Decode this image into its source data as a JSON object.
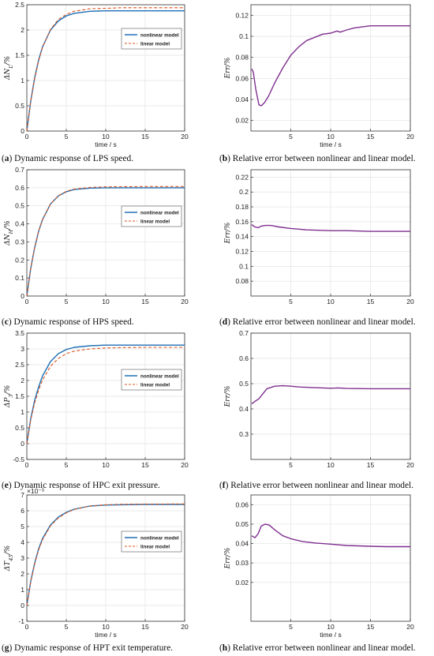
{
  "colors": {
    "nonlinear": "#1f6fb5",
    "linear": "#d9541e",
    "error": "#7e2f8e",
    "grid": "#e3e3e3",
    "axis": "#333333",
    "text": "#222222"
  },
  "captions": [
    {
      "letter": "a",
      "text": " Dynamic response of LPS speed."
    },
    {
      "letter": "b",
      "text": " Relative error between nonlinear and linear model."
    },
    {
      "letter": "c",
      "text": " Dynamic response of HPS speed."
    },
    {
      "letter": "d",
      "text": " Relative error between nonlinear and linear model."
    },
    {
      "letter": "e",
      "text": " Dynamic response of HPC exit pressure."
    },
    {
      "letter": "f",
      "text": " Relative error between nonlinear and linear model."
    },
    {
      "letter": "g",
      "text": " Dynamic response of HPT exit temperature."
    },
    {
      "letter": "h",
      "text": " Relative error between nonlinear and linear model."
    }
  ],
  "chart_data": [
    {
      "type": "line",
      "xlabel": "time / s",
      "ylabel": "ΔN_L/%",
      "xlim": [
        0,
        20
      ],
      "ylim": [
        0,
        2.5
      ],
      "xticks": [
        0,
        5,
        10,
        15,
        20
      ],
      "yticks": [
        0,
        0.5,
        1,
        1.5,
        2,
        2.5
      ],
      "grid": true,
      "legend": "top-right",
      "series": [
        {
          "name": "nonlinear model",
          "style": "solid",
          "x": [
            0,
            0.5,
            1,
            1.5,
            2,
            3,
            4,
            5,
            6,
            8,
            10,
            12,
            15,
            20
          ],
          "y": [
            0,
            0.6,
            1.06,
            1.41,
            1.67,
            2.0,
            2.18,
            2.28,
            2.33,
            2.37,
            2.38,
            2.38,
            2.38,
            2.38
          ]
        },
        {
          "name": "linear model",
          "style": "dashed",
          "x": [
            0,
            0.5,
            1,
            1.5,
            2,
            3,
            4,
            5,
            6,
            8,
            10,
            12,
            15,
            20
          ],
          "y": [
            0,
            0.59,
            1.04,
            1.39,
            1.66,
            2.01,
            2.21,
            2.31,
            2.37,
            2.42,
            2.43,
            2.44,
            2.44,
            2.44
          ]
        }
      ]
    },
    {
      "type": "line",
      "xlabel": "time / s",
      "ylabel": "Err/%",
      "xlim": [
        0,
        20
      ],
      "ylim": [
        0.01,
        0.13
      ],
      "xticks": [
        5,
        10,
        15,
        20
      ],
      "yticks": [
        0.02,
        0.04,
        0.06,
        0.08,
        0.1,
        0.12
      ],
      "grid": true,
      "series": [
        {
          "x": [
            0.1,
            0.3,
            0.6,
            1.0,
            1.3,
            1.7,
            2.2,
            3,
            4,
            5,
            6,
            7,
            8,
            9,
            10,
            10.8,
            11.2,
            12,
            13,
            15,
            17,
            20
          ],
          "y": [
            0.069,
            0.066,
            0.05,
            0.035,
            0.034,
            0.037,
            0.043,
            0.056,
            0.07,
            0.082,
            0.09,
            0.096,
            0.099,
            0.102,
            0.103,
            0.105,
            0.104,
            0.106,
            0.108,
            0.11,
            0.11,
            0.11
          ]
        }
      ]
    },
    {
      "type": "line",
      "xlabel": "",
      "ylabel": "ΔN_H/%",
      "xlim": [
        0,
        20
      ],
      "ylim": [
        0,
        0.7
      ],
      "xticks": [
        0,
        5,
        10,
        15,
        20
      ],
      "yticks": [
        0,
        0.1,
        0.2,
        0.3,
        0.4,
        0.5,
        0.6,
        0.7
      ],
      "grid": true,
      "legend": "right",
      "series": [
        {
          "name": "nonlinear model",
          "style": "solid",
          "x": [
            0,
            0.5,
            1,
            1.5,
            2,
            3,
            4,
            5,
            6,
            8,
            10,
            12,
            15,
            20
          ],
          "y": [
            0,
            0.155,
            0.27,
            0.36,
            0.425,
            0.51,
            0.555,
            0.578,
            0.59,
            0.598,
            0.6,
            0.6,
            0.6,
            0.6
          ]
        },
        {
          "name": "linear model",
          "style": "dashed",
          "x": [
            0,
            0.5,
            1,
            1.5,
            2,
            3,
            4,
            5,
            6,
            8,
            10,
            12,
            15,
            20
          ],
          "y": [
            0,
            0.155,
            0.27,
            0.36,
            0.425,
            0.51,
            0.556,
            0.58,
            0.593,
            0.602,
            0.605,
            0.606,
            0.607,
            0.607
          ]
        }
      ]
    },
    {
      "type": "line",
      "xlabel": "",
      "ylabel": "Err/%",
      "xlim": [
        0,
        20
      ],
      "ylim": [
        0.06,
        0.23
      ],
      "xticks": [
        5,
        10,
        15,
        20
      ],
      "yticks": [
        0.08,
        0.1,
        0.12,
        0.14,
        0.16,
        0.18,
        0.2,
        0.22
      ],
      "grid": true,
      "series": [
        {
          "x": [
            0.1,
            0.5,
            0.9,
            1.3,
            1.8,
            2.5,
            3.5,
            5,
            7,
            10,
            12,
            15,
            20
          ],
          "y": [
            0.156,
            0.153,
            0.152,
            0.154,
            0.155,
            0.155,
            0.153,
            0.151,
            0.149,
            0.148,
            0.148,
            0.147,
            0.147
          ]
        }
      ]
    },
    {
      "type": "line",
      "xlabel": "",
      "ylabel": "ΔP_3/%",
      "xlim": [
        0,
        20
      ],
      "ylim": [
        -0.5,
        3.5
      ],
      "xticks": [
        0,
        5,
        10,
        15,
        20
      ],
      "yticks": [
        -0.5,
        0,
        0.5,
        1,
        1.5,
        2,
        2.5,
        3,
        3.5
      ],
      "grid": true,
      "legend": "right",
      "series": [
        {
          "name": "nonlinear model",
          "style": "solid",
          "x": [
            0,
            0.5,
            1,
            1.5,
            2,
            3,
            4,
            5,
            6,
            8,
            10,
            12,
            15,
            20
          ],
          "y": [
            0,
            0.8,
            1.38,
            1.8,
            2.15,
            2.6,
            2.85,
            2.98,
            3.05,
            3.1,
            3.12,
            3.12,
            3.12,
            3.12
          ]
        },
        {
          "name": "linear model",
          "style": "dashed",
          "x": [
            0,
            0.5,
            1,
            1.5,
            2,
            3,
            4,
            5,
            6,
            8,
            10,
            12,
            15,
            20
          ],
          "y": [
            0,
            0.76,
            1.3,
            1.7,
            2.02,
            2.45,
            2.7,
            2.85,
            2.93,
            3.0,
            3.03,
            3.04,
            3.05,
            3.05
          ]
        }
      ]
    },
    {
      "type": "line",
      "xlabel": "",
      "ylabel": "Err/%",
      "xlim": [
        0,
        20
      ],
      "ylim": [
        0.2,
        0.7
      ],
      "xticks": [
        5,
        10,
        15,
        20
      ],
      "yticks": [
        0.3,
        0.4,
        0.5,
        0.6,
        0.7
      ],
      "grid": true,
      "series": [
        {
          "x": [
            0.1,
            0.5,
            1.0,
            1.5,
            2.0,
            3.0,
            4.0,
            5.0,
            6.0,
            8.0,
            10.0,
            11.0,
            12.0,
            15.0,
            20.0
          ],
          "y": [
            0.42,
            0.43,
            0.44,
            0.46,
            0.48,
            0.49,
            0.492,
            0.49,
            0.487,
            0.484,
            0.482,
            0.483,
            0.481,
            0.48,
            0.48
          ]
        }
      ]
    },
    {
      "type": "line",
      "xlabel": "time / s",
      "ylabel": "ΔT_45/%",
      "ytick_exponent": "×10⁻³",
      "xlim": [
        0,
        20
      ],
      "ylim": [
        -1,
        7
      ],
      "xticks": [
        0,
        5,
        10,
        15,
        20
      ],
      "yticks": [
        -1,
        0,
        1,
        2,
        3,
        4,
        5,
        6,
        7
      ],
      "grid": true,
      "legend": "right",
      "series": [
        {
          "name": "nonlinear model",
          "style": "solid",
          "x": [
            0,
            0.5,
            1,
            1.5,
            2,
            3,
            4,
            5,
            6,
            8,
            10,
            12,
            15,
            20
          ],
          "y": [
            0,
            1.55,
            2.7,
            3.6,
            4.25,
            5.1,
            5.6,
            5.9,
            6.1,
            6.3,
            6.36,
            6.38,
            6.4,
            6.4
          ]
        },
        {
          "name": "linear model",
          "style": "dashed",
          "x": [
            0,
            0.5,
            1,
            1.5,
            2,
            3,
            4,
            5,
            6,
            8,
            10,
            12,
            15,
            20
          ],
          "y": [
            0,
            1.5,
            2.64,
            3.52,
            4.18,
            5.05,
            5.55,
            5.87,
            6.08,
            6.3,
            6.38,
            6.41,
            6.42,
            6.43
          ]
        }
      ]
    },
    {
      "type": "line",
      "xlabel": "time / s",
      "ylabel": "Err/%",
      "xlim": [
        0,
        20
      ],
      "ylim": [
        0.0,
        0.065
      ],
      "xticks": [
        5,
        10,
        15,
        20
      ],
      "yticks": [
        0.02,
        0.03,
        0.04,
        0.05,
        0.06
      ],
      "grid": true,
      "series": [
        {
          "x": [
            0.1,
            0.5,
            0.9,
            1.3,
            1.8,
            2.3,
            3.0,
            4.0,
            5.0,
            6.5,
            8.0,
            10.0,
            12.0,
            15.0,
            17.0,
            20.0
          ],
          "y": [
            0.044,
            0.043,
            0.045,
            0.049,
            0.05,
            0.0495,
            0.047,
            0.044,
            0.0425,
            0.041,
            0.0403,
            0.0397,
            0.039,
            0.0386,
            0.0384,
            0.0384
          ]
        }
      ]
    }
  ]
}
